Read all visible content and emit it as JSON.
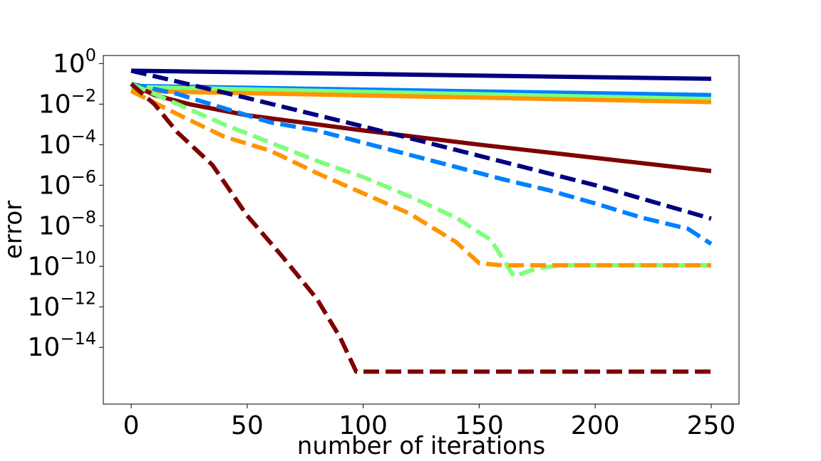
{
  "chart_data": {
    "type": "line",
    "title": "",
    "xlabel": "number of iterations",
    "ylabel": "error",
    "xlim": [
      -12,
      262
    ],
    "ylim_log10": [
      -16.8,
      0.4
    ],
    "y_scale": "log",
    "grid": false,
    "x_ticks": [
      0,
      50,
      100,
      150,
      200,
      250
    ],
    "x_tick_labels": [
      "0",
      "50",
      "100",
      "150",
      "200",
      "250"
    ],
    "y_ticks": [
      {
        "base": "10",
        "exp": "0"
      },
      {
        "base": "10",
        "exp": "−2"
      },
      {
        "base": "10",
        "exp": "−4"
      },
      {
        "base": "10",
        "exp": "−6"
      },
      {
        "base": "10",
        "exp": "−8"
      },
      {
        "base": "10",
        "exp": "−10"
      },
      {
        "base": "10",
        "exp": "−12"
      },
      {
        "base": "10",
        "exp": "−14"
      }
    ],
    "series": [
      {
        "name": "navy-solid",
        "color": "#00007f",
        "dash": "solid",
        "log10_points": [
          [
            0,
            -0.35
          ],
          [
            250,
            -0.75
          ]
        ]
      },
      {
        "name": "blue-solid",
        "color": "#0080ff",
        "dash": "solid",
        "log10_points": [
          [
            0,
            -1.1
          ],
          [
            250,
            -1.55
          ]
        ]
      },
      {
        "name": "green-solid",
        "color": "#7dff7a",
        "dash": "solid",
        "log10_points": [
          [
            0,
            -1.15
          ],
          [
            250,
            -1.75
          ]
        ]
      },
      {
        "name": "orange-solid",
        "color": "#ff9400",
        "dash": "solid",
        "log10_points": [
          [
            0,
            -1.35
          ],
          [
            250,
            -1.9
          ]
        ]
      },
      {
        "name": "maroon-solid",
        "color": "#7f0000",
        "dash": "solid",
        "log10_points": [
          [
            0,
            -1.0
          ],
          [
            10,
            -1.55
          ],
          [
            25,
            -2.0
          ],
          [
            50,
            -2.55
          ],
          [
            100,
            -3.3
          ],
          [
            150,
            -4.0
          ],
          [
            200,
            -4.65
          ],
          [
            250,
            -5.3
          ]
        ]
      },
      {
        "name": "navy-dashed",
        "color": "#00007f",
        "dash": "dashed",
        "log10_points": [
          [
            0,
            -0.35
          ],
          [
            50,
            -1.7
          ],
          [
            100,
            -3.1
          ],
          [
            150,
            -4.55
          ],
          [
            200,
            -6.0
          ],
          [
            250,
            -7.65
          ]
        ]
      },
      {
        "name": "blue-dashed",
        "color": "#0080ff",
        "dash": "dashed",
        "log10_points": [
          [
            0,
            -1.0
          ],
          [
            20,
            -1.5
          ],
          [
            40,
            -2.2
          ],
          [
            60,
            -2.9
          ],
          [
            80,
            -3.3
          ],
          [
            100,
            -3.9
          ],
          [
            120,
            -4.5
          ],
          [
            140,
            -5.1
          ],
          [
            160,
            -5.7
          ],
          [
            180,
            -6.25
          ],
          [
            200,
            -6.9
          ],
          [
            220,
            -7.6
          ],
          [
            240,
            -8.15
          ],
          [
            250,
            -8.9
          ]
        ]
      },
      {
        "name": "green-dashed",
        "color": "#7dff7a",
        "dash": "dashed",
        "log10_points": [
          [
            0,
            -1.0
          ],
          [
            20,
            -2.0
          ],
          [
            40,
            -3.0
          ],
          [
            60,
            -3.9
          ],
          [
            80,
            -4.8
          ],
          [
            100,
            -5.6
          ],
          [
            120,
            -6.55
          ],
          [
            140,
            -7.6
          ],
          [
            155,
            -8.7
          ],
          [
            165,
            -10.5
          ],
          [
            175,
            -10.1
          ],
          [
            185,
            -9.95
          ],
          [
            250,
            -9.95
          ]
        ]
      },
      {
        "name": "orange-dashed",
        "color": "#ff9400",
        "dash": "dashed",
        "log10_points": [
          [
            0,
            -1.35
          ],
          [
            20,
            -2.5
          ],
          [
            40,
            -3.6
          ],
          [
            60,
            -4.3
          ],
          [
            80,
            -5.4
          ],
          [
            100,
            -6.4
          ],
          [
            120,
            -7.4
          ],
          [
            140,
            -8.8
          ],
          [
            150,
            -9.85
          ],
          [
            160,
            -9.95
          ],
          [
            250,
            -9.95
          ]
        ]
      },
      {
        "name": "maroon-dashed",
        "color": "#7f0000",
        "dash": "dashed",
        "log10_points": [
          [
            0,
            -1.0
          ],
          [
            10,
            -2.0
          ],
          [
            20,
            -3.4
          ],
          [
            35,
            -5.0
          ],
          [
            50,
            -7.5
          ],
          [
            65,
            -9.5
          ],
          [
            80,
            -11.6
          ],
          [
            90,
            -13.5
          ],
          [
            97,
            -15.2
          ],
          [
            250,
            -15.2
          ]
        ]
      }
    ]
  }
}
